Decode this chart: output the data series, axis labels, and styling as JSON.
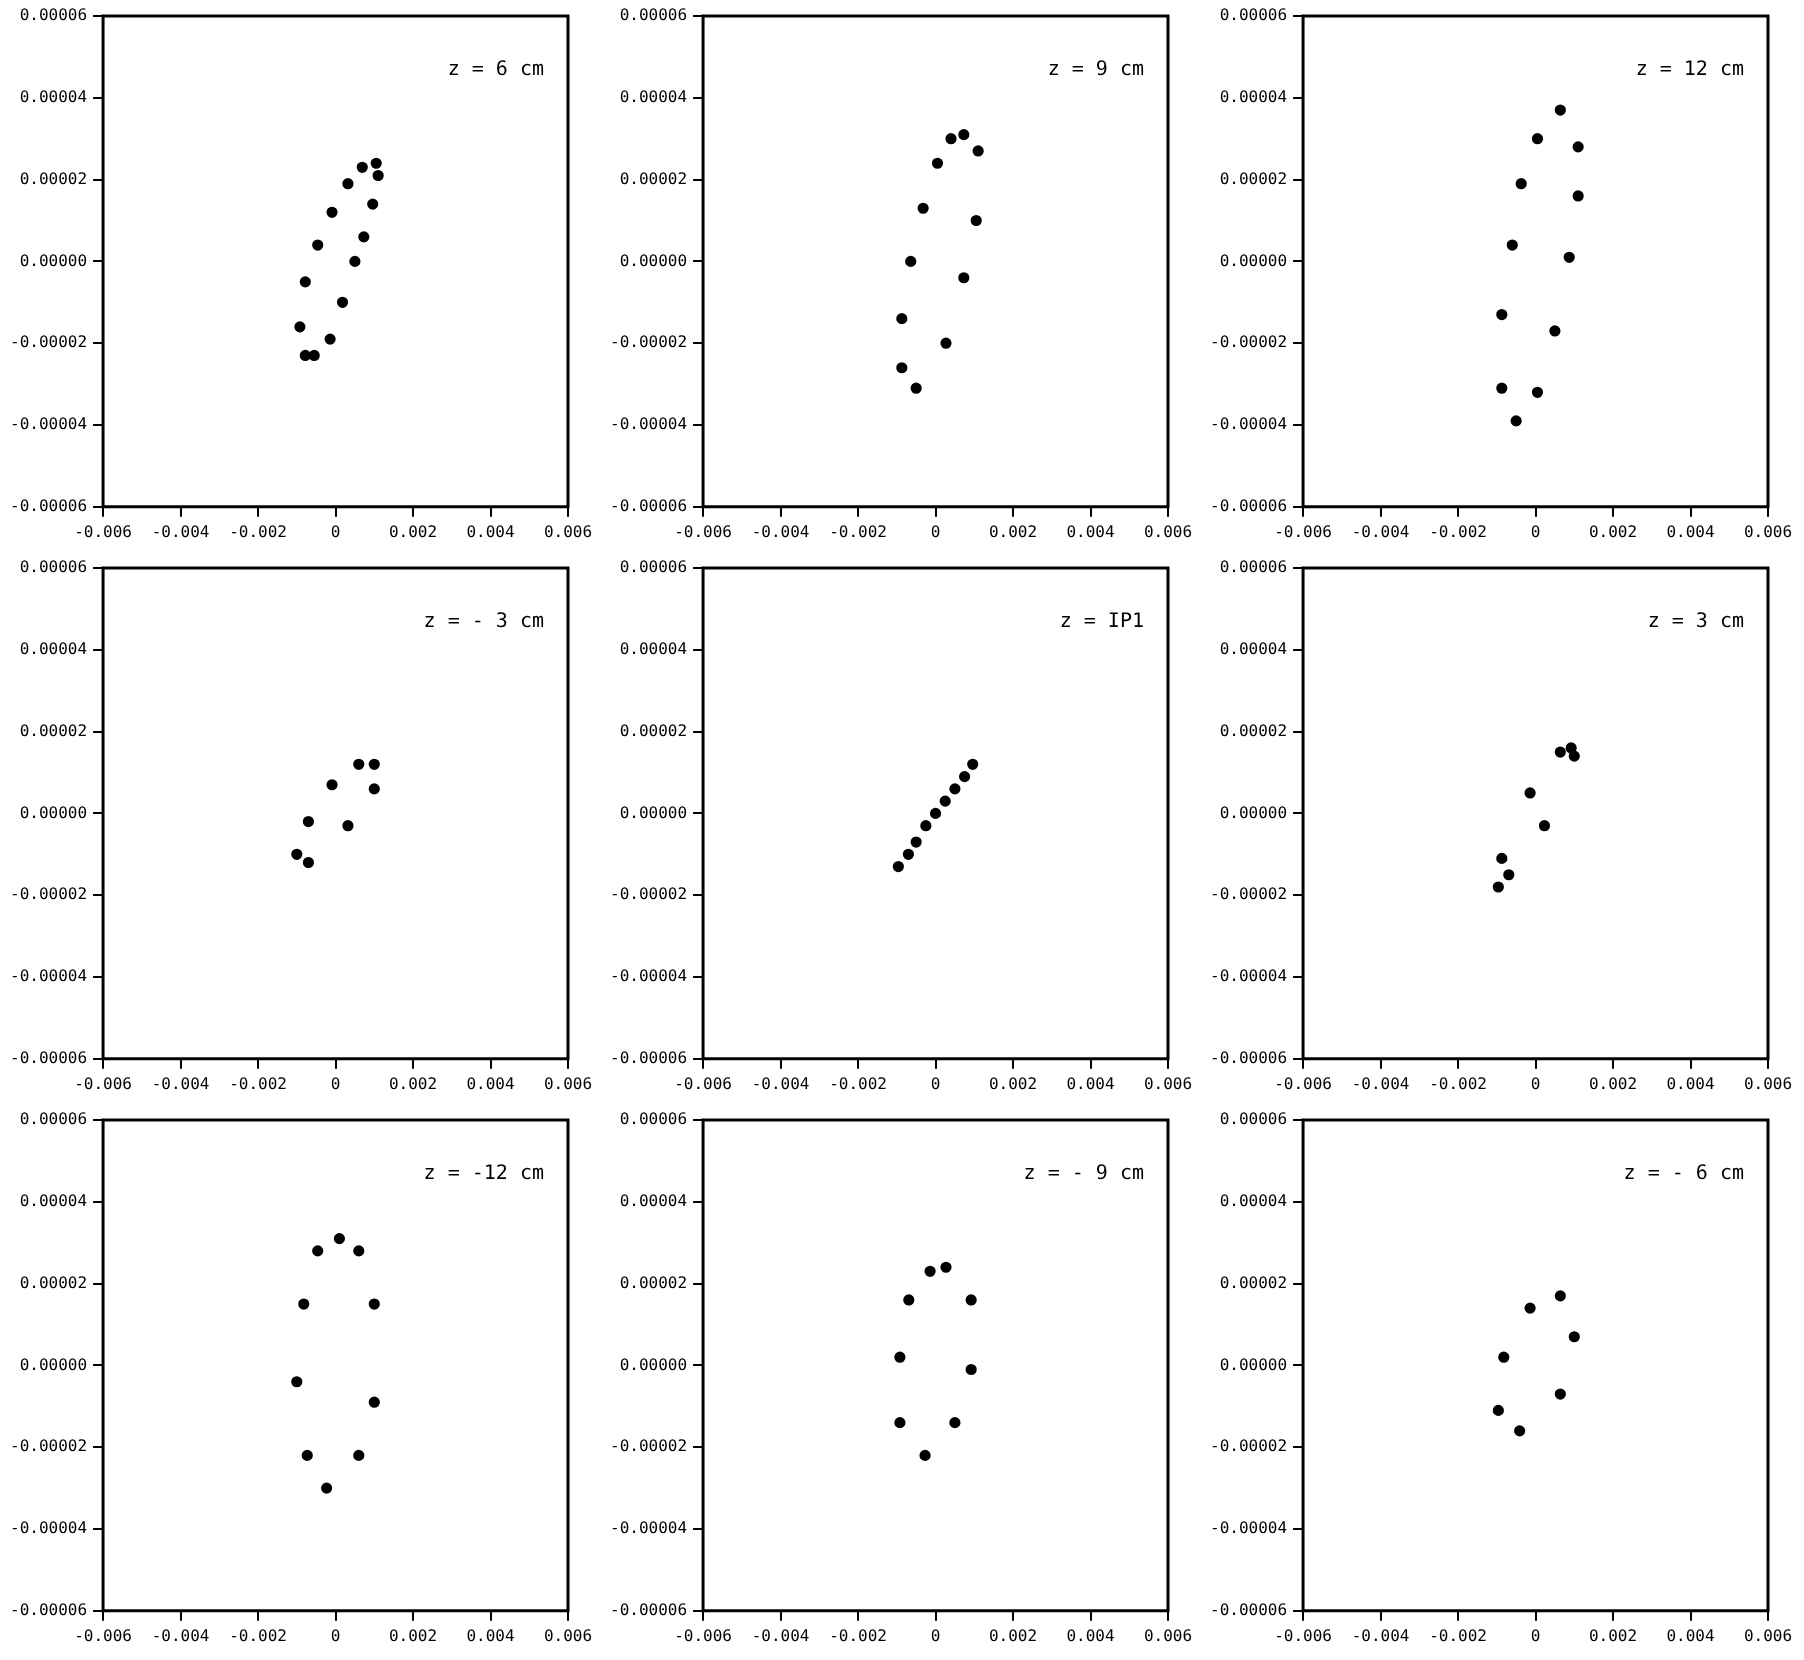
{
  "chart_data": [
    {
      "type": "scatter",
      "annotations": [
        "z = 6 cm"
      ],
      "xlim": [
        -0.006,
        0.006
      ],
      "ylim": [
        -6e-05,
        6e-05
      ],
      "xticks": [
        -0.006,
        -0.004,
        -0.002,
        0,
        0.002,
        0.004,
        0.006
      ],
      "yticks": [
        {
          "value": -6e-05,
          "label": "-0.00006"
        },
        {
          "value": -4e-05,
          "label": "-0.00004"
        },
        {
          "value": -2e-05,
          "label": "-0.00002"
        },
        {
          "value": 0,
          "label": "0.00000"
        },
        {
          "value": 2e-05,
          "label": "0.00002"
        },
        {
          "value": 4e-05,
          "label": "0.00004"
        },
        {
          "value": 6e-05,
          "label": "0.00006"
        }
      ],
      "marker": "circle",
      "series": [
        {
          "color": "#000000",
          "x": [
            0.00105,
            0.0011,
            0.00096,
            0.00073,
            0.0005,
            0.00018,
            -0.00014,
            -0.00055,
            -0.00078,
            -0.00092,
            -0.00078,
            -0.00046,
            -9e-05,
            0.00032,
            0.00069
          ],
          "values": [
            2.4e-05,
            2.1e-05,
            1.4e-05,
            6e-06,
            0,
            -1e-05,
            -1.9e-05,
            -2.3e-05,
            -2.3e-05,
            -1.6e-05,
            -5e-06,
            4e-06,
            1.2e-05,
            1.9e-05,
            2.3e-05
          ]
        }
      ]
    },
    {
      "type": "scatter",
      "annotations": [
        "z = 9 cm"
      ],
      "xlim": [
        -0.006,
        0.006
      ],
      "ylim": [
        -6e-05,
        6e-05
      ],
      "xticks": [
        -0.006,
        -0.004,
        -0.002,
        0,
        0.002,
        0.004,
        0.006
      ],
      "yticks": [
        {
          "value": -6e-05,
          "label": "-0.00006"
        },
        {
          "value": -4e-05,
          "label": "-0.00004"
        },
        {
          "value": -2e-05,
          "label": "-0.00002"
        },
        {
          "value": 0,
          "label": "0.00000"
        },
        {
          "value": 2e-05,
          "label": "0.00002"
        },
        {
          "value": 4e-05,
          "label": "0.00004"
        },
        {
          "value": 6e-05,
          "label": "0.00006"
        }
      ],
      "marker": "circle",
      "series": [
        {
          "color": "#000000",
          "x": [
            0.00073,
            0.0011,
            0.00105,
            0.00073,
            0.00027,
            -0.0005,
            -0.00087,
            -0.00087,
            -0.00064,
            -0.00032,
            5e-05,
            0.0004
          ],
          "values": [
            3.1e-05,
            2.7e-05,
            1e-05,
            -4e-06,
            -2e-05,
            -3.1e-05,
            -2.6e-05,
            -1.4e-05,
            0,
            1.3e-05,
            2.4e-05,
            3e-05
          ]
        }
      ]
    },
    {
      "type": "scatter",
      "annotations": [
        "z = 12 cm"
      ],
      "xlim": [
        -0.006,
        0.006
      ],
      "ylim": [
        -6e-05,
        6e-05
      ],
      "xticks": [
        -0.006,
        -0.004,
        -0.002,
        0,
        0.002,
        0.004,
        0.006
      ],
      "yticks": [
        {
          "value": -6e-05,
          "label": "-0.00006"
        },
        {
          "value": -4e-05,
          "label": "-0.00004"
        },
        {
          "value": -2e-05,
          "label": "-0.00002"
        },
        {
          "value": 0,
          "label": "0.00000"
        },
        {
          "value": 2e-05,
          "label": "0.00002"
        },
        {
          "value": 4e-05,
          "label": "0.00004"
        },
        {
          "value": 6e-05,
          "label": "0.00006"
        }
      ],
      "marker": "circle",
      "series": [
        {
          "color": "#000000",
          "x": [
            0.00064,
            0.0011,
            0.0011,
            0.00087,
            0.0005,
            5e-05,
            -0.0005,
            -0.00087,
            -0.00087,
            -0.0006,
            -0.00037,
            5e-05
          ],
          "values": [
            3.7e-05,
            2.8e-05,
            1.6e-05,
            1e-06,
            -1.7e-05,
            -3.2e-05,
            -3.9e-05,
            -3.1e-05,
            -1.3e-05,
            4e-06,
            1.9e-05,
            3e-05
          ]
        }
      ]
    },
    {
      "type": "scatter",
      "annotations": [
        "z = - 3 cm"
      ],
      "xlim": [
        -0.006,
        0.006
      ],
      "ylim": [
        -6e-05,
        6e-05
      ],
      "xticks": [
        -0.006,
        -0.004,
        -0.002,
        0,
        0.002,
        0.004,
        0.006
      ],
      "yticks": [
        {
          "value": -6e-05,
          "label": "-0.00006"
        },
        {
          "value": -4e-05,
          "label": "-0.00004"
        },
        {
          "value": -2e-05,
          "label": "-0.00002"
        },
        {
          "value": 0,
          "label": "0.00000"
        },
        {
          "value": 2e-05,
          "label": "0.00002"
        },
        {
          "value": 4e-05,
          "label": "0.00004"
        },
        {
          "value": 6e-05,
          "label": "0.00006"
        }
      ],
      "marker": "circle",
      "series": [
        {
          "color": "#000000",
          "x": [
            0.001,
            0.001,
            0.00032,
            -0.0007,
            -0.001,
            -0.0007,
            -9e-05,
            0.0006
          ],
          "values": [
            1.2e-05,
            6e-06,
            -3e-06,
            -1.2e-05,
            -1e-05,
            -2e-06,
            7e-06,
            1.2e-05
          ]
        }
      ]
    },
    {
      "type": "scatter",
      "annotations": [
        "z = IP1"
      ],
      "xlim": [
        -0.006,
        0.006
      ],
      "ylim": [
        -6e-05,
        6e-05
      ],
      "xticks": [
        -0.006,
        -0.004,
        -0.002,
        0,
        0.002,
        0.004,
        0.006
      ],
      "yticks": [
        {
          "value": -6e-05,
          "label": "-0.00006"
        },
        {
          "value": -4e-05,
          "label": "-0.00004"
        },
        {
          "value": -2e-05,
          "label": "-0.00002"
        },
        {
          "value": 0,
          "label": "0.00000"
        },
        {
          "value": 2e-05,
          "label": "0.00002"
        },
        {
          "value": 4e-05,
          "label": "0.00004"
        },
        {
          "value": 6e-05,
          "label": "0.00006"
        }
      ],
      "marker": "circle",
      "series": [
        {
          "color": "#000000",
          "x": [
            -0.00096,
            -0.0007,
            -0.0005,
            -0.00025,
            0,
            0.00025,
            0.0005,
            0.00075,
            0.00096
          ],
          "values": [
            -1.3e-05,
            -1e-05,
            -7e-06,
            -3e-06,
            0,
            3e-06,
            6e-06,
            9e-06,
            1.2e-05
          ]
        }
      ]
    },
    {
      "type": "scatter",
      "annotations": [
        "z = 3 cm"
      ],
      "xlim": [
        -0.006,
        0.006
      ],
      "ylim": [
        -6e-05,
        6e-05
      ],
      "xticks": [
        -0.006,
        -0.004,
        -0.002,
        0,
        0.002,
        0.004,
        0.006
      ],
      "yticks": [
        {
          "value": -6e-05,
          "label": "-0.00006"
        },
        {
          "value": -4e-05,
          "label": "-0.00004"
        },
        {
          "value": -2e-05,
          "label": "-0.00002"
        },
        {
          "value": 0,
          "label": "0.00000"
        },
        {
          "value": 2e-05,
          "label": "0.00002"
        },
        {
          "value": 4e-05,
          "label": "0.00004"
        },
        {
          "value": 6e-05,
          "label": "0.00006"
        }
      ],
      "marker": "circle",
      "series": [
        {
          "color": "#000000",
          "x": [
            0.00092,
            0.001,
            0.00023,
            -0.00069,
            -0.00096,
            -0.00087,
            -0.00014,
            0.00064
          ],
          "values": [
            1.6e-05,
            1.4e-05,
            -3e-06,
            -1.5e-05,
            -1.8e-05,
            -1.1e-05,
            5e-06,
            1.5e-05
          ]
        }
      ]
    },
    {
      "type": "scatter",
      "annotations": [
        "z = -12 cm"
      ],
      "xlim": [
        -0.006,
        0.006
      ],
      "ylim": [
        -6e-05,
        6e-05
      ],
      "xticks": [
        -0.006,
        -0.004,
        -0.002,
        0,
        0.002,
        0.004,
        0.006
      ],
      "yticks": [
        {
          "value": -6e-05,
          "label": "-0.00006"
        },
        {
          "value": -4e-05,
          "label": "-0.00004"
        },
        {
          "value": -2e-05,
          "label": "-0.00002"
        },
        {
          "value": 0,
          "label": "0.00000"
        },
        {
          "value": 2e-05,
          "label": "0.00002"
        },
        {
          "value": 4e-05,
          "label": "0.00004"
        },
        {
          "value": 6e-05,
          "label": "0.00006"
        }
      ],
      "marker": "circle",
      "series": [
        {
          "color": "#000000",
          "x": [
            0.0001,
            0.0006,
            0.001,
            0.001,
            0.0006,
            -0.00023,
            -0.00073,
            -0.001,
            -0.00082,
            -0.00046
          ],
          "values": [
            3.1e-05,
            2.8e-05,
            1.5e-05,
            -9e-06,
            -2.2e-05,
            -3e-05,
            -2.2e-05,
            -4e-06,
            1.5e-05,
            2.8e-05
          ]
        }
      ]
    },
    {
      "type": "scatter",
      "annotations": [
        "z = - 9 cm"
      ],
      "xlim": [
        -0.006,
        0.006
      ],
      "ylim": [
        -6e-05,
        6e-05
      ],
      "xticks": [
        -0.006,
        -0.004,
        -0.002,
        0,
        0.002,
        0.004,
        0.006
      ],
      "yticks": [
        {
          "value": -6e-05,
          "label": "-0.00006"
        },
        {
          "value": -4e-05,
          "label": "-0.00004"
        },
        {
          "value": -2e-05,
          "label": "-0.00002"
        },
        {
          "value": 0,
          "label": "0.00000"
        },
        {
          "value": 2e-05,
          "label": "0.00002"
        },
        {
          "value": 4e-05,
          "label": "0.00004"
        },
        {
          "value": 6e-05,
          "label": "0.00006"
        }
      ],
      "marker": "circle",
      "series": [
        {
          "color": "#000000",
          "x": [
            0.00027,
            0.00092,
            0.00092,
            0.0005,
            -0.00027,
            -0.00092,
            -0.00092,
            -0.00069,
            -0.00014
          ],
          "values": [
            2.4e-05,
            1.6e-05,
            -1e-06,
            -1.4e-05,
            -2.2e-05,
            -1.4e-05,
            2e-06,
            1.6e-05,
            2.3e-05
          ]
        }
      ]
    },
    {
      "type": "scatter",
      "annotations": [
        "z = - 6 cm"
      ],
      "xlim": [
        -0.006,
        0.006
      ],
      "ylim": [
        -6e-05,
        6e-05
      ],
      "xticks": [
        -0.006,
        -0.004,
        -0.002,
        0,
        0.002,
        0.004,
        0.006
      ],
      "yticks": [
        {
          "value": -6e-05,
          "label": "-0.00006"
        },
        {
          "value": -4e-05,
          "label": "-0.00004"
        },
        {
          "value": -2e-05,
          "label": "-0.00002"
        },
        {
          "value": 0,
          "label": "0.00000"
        },
        {
          "value": 2e-05,
          "label": "0.00002"
        },
        {
          "value": 4e-05,
          "label": "0.00004"
        },
        {
          "value": 6e-05,
          "label": "0.00006"
        }
      ],
      "marker": "circle",
      "series": [
        {
          "color": "#000000",
          "x": [
            0.00064,
            0.001,
            0.00064,
            -0.00041,
            -0.00096,
            -0.00082,
            -0.00014
          ],
          "values": [
            1.7e-05,
            7e-06,
            -7e-06,
            -1.6e-05,
            -1.1e-05,
            2e-06,
            1.4e-05
          ]
        }
      ]
    }
  ]
}
